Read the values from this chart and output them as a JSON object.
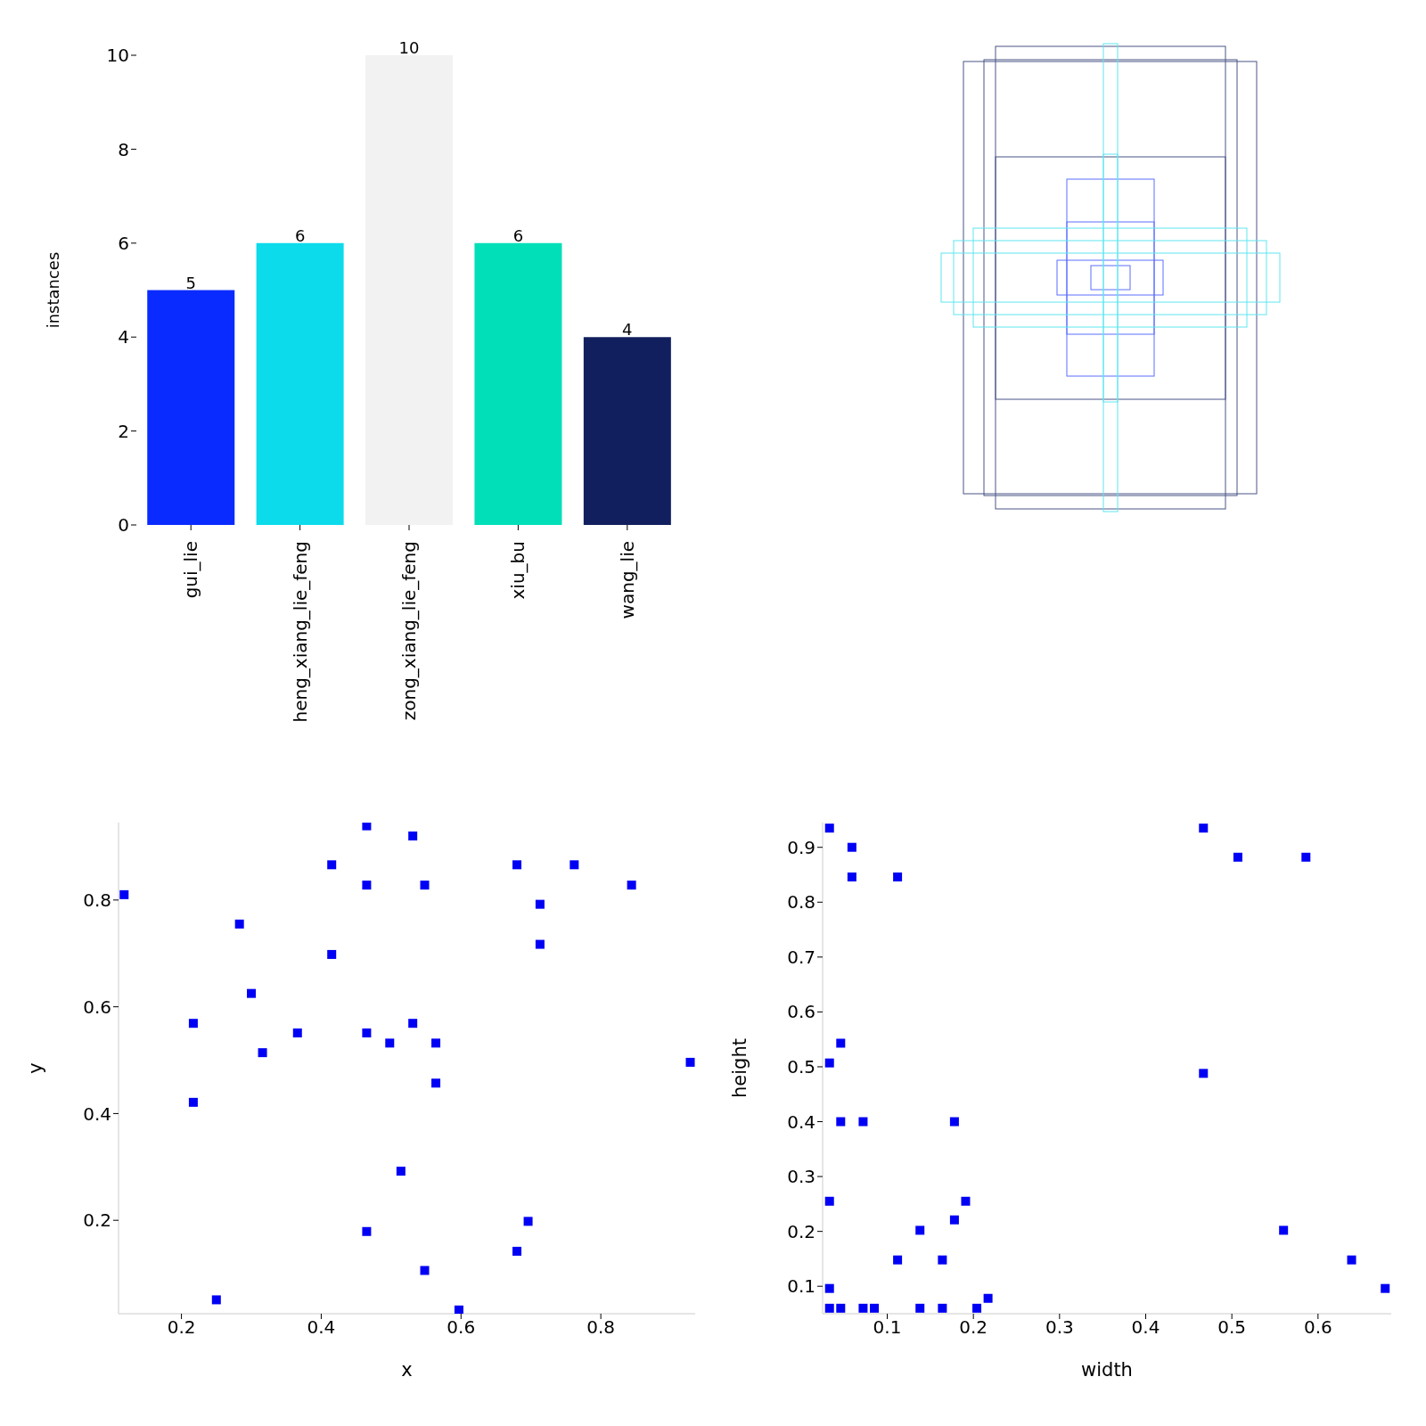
{
  "chart_data": [
    {
      "type": "bar",
      "categories": [
        "gui_lie",
        "heng_xiang_lie_feng",
        "zong_xiang_lie_feng",
        "xiu_bu",
        "wang_lie"
      ],
      "values": [
        5,
        6,
        10,
        6,
        4
      ],
      "colors": [
        "#0a2bff",
        "#0bdbeb",
        "#f2f2f2",
        "#00dfb7",
        "#111f5e"
      ],
      "ylabel": "instances",
      "ylim": [
        0,
        10
      ],
      "yticks": [
        0,
        2,
        4,
        6,
        8,
        10
      ],
      "data_labels": true,
      "grid": false
    },
    {
      "type": "scatter",
      "xlabel": "x",
      "ylabel": "y",
      "color": "#0000f5",
      "marker": "square",
      "xlim": [
        0.11,
        0.935
      ],
      "ylim": [
        0.025,
        0.945
      ],
      "xticks": [
        0.2,
        0.4,
        0.6,
        0.8
      ],
      "yticks": [
        0.2,
        0.4,
        0.6,
        0.8
      ],
      "grid": false,
      "x": [
        0.118,
        0.465,
        0.531,
        0.415,
        0.465,
        0.548,
        0.68,
        0.762,
        0.844,
        0.713,
        0.713,
        0.283,
        0.415,
        0.3,
        0.217,
        0.366,
        0.465,
        0.531,
        0.498,
        0.564,
        0.316,
        0.564,
        0.928,
        0.217,
        0.514,
        0.465,
        0.696,
        0.68,
        0.548,
        0.25,
        0.597
      ],
      "values": [
        0.81,
        0.939,
        0.92,
        0.866,
        0.828,
        0.828,
        0.866,
        0.866,
        0.828,
        0.792,
        0.717,
        0.755,
        0.698,
        0.625,
        0.569,
        0.551,
        0.551,
        0.569,
        0.532,
        0.532,
        0.514,
        0.457,
        0.496,
        0.421,
        0.292,
        0.179,
        0.198,
        0.142,
        0.106,
        0.051,
        0.032
      ]
    },
    {
      "type": "scatter",
      "xlabel": "width",
      "ylabel": "height",
      "color": "#0000f5",
      "marker": "square",
      "xlim": [
        0.025,
        0.685
      ],
      "ylim": [
        0.05,
        0.945
      ],
      "xticks": [
        0.1,
        0.2,
        0.3,
        0.4,
        0.5,
        0.6
      ],
      "yticks": [
        0.1,
        0.2,
        0.3,
        0.4,
        0.5,
        0.6,
        0.7,
        0.8,
        0.9
      ],
      "grid": false,
      "x": [
        0.033,
        0.059,
        0.059,
        0.112,
        0.467,
        0.507,
        0.586,
        0.046,
        0.033,
        0.467,
        0.046,
        0.072,
        0.178,
        0.033,
        0.191,
        0.178,
        0.138,
        0.56,
        0.112,
        0.164,
        0.639,
        0.033,
        0.678,
        0.033,
        0.046,
        0.072,
        0.085,
        0.138,
        0.164,
        0.204,
        0.217
      ],
      "values": [
        0.935,
        0.9,
        0.846,
        0.846,
        0.935,
        0.882,
        0.882,
        0.543,
        0.507,
        0.488,
        0.4,
        0.4,
        0.4,
        0.255,
        0.255,
        0.221,
        0.202,
        0.202,
        0.148,
        0.148,
        0.148,
        0.096,
        0.096,
        0.06,
        0.06,
        0.06,
        0.06,
        0.06,
        0.06,
        0.06,
        0.078
      ]
    }
  ]
}
